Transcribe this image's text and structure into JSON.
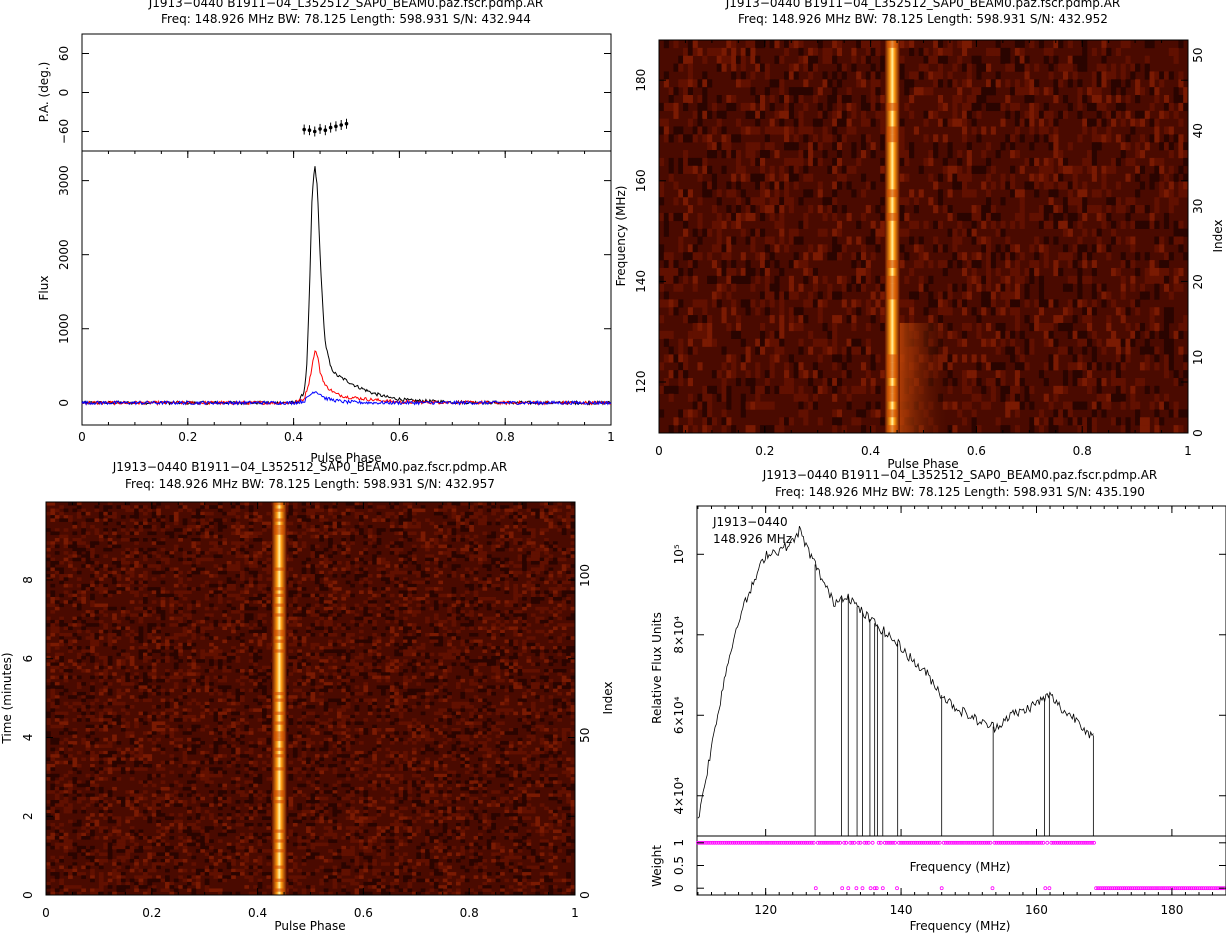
{
  "chart_data": [
    {
      "type": "line",
      "title": "J1913−0440  B1911−04_L352512_SAP0_BEAM0.paz.fscr.pdmp.AR",
      "subtitle": "Freq: 148.926 MHz BW: 78.125 Length: 598.931 S/N: 432.944",
      "xlabel": "Pulse Phase",
      "xlim": [
        0,
        1
      ],
      "xticks": [
        "0",
        "0.2",
        "0.4",
        "0.6",
        "0.8",
        "1"
      ],
      "pa_panel": {
        "ylabel": "P.A. (deg.)",
        "ylim": [
          -90,
          90
        ],
        "yticks": [
          "60",
          "0",
          "−60"
        ],
        "x": [
          0.42,
          0.43,
          0.44,
          0.45,
          0.46,
          0.47,
          0.48,
          0.49,
          0.5
        ],
        "y": [
          -57,
          -58,
          -60,
          -56,
          -58,
          -54,
          -52,
          -50,
          -48
        ]
      },
      "flux_panel": {
        "ylabel": "Flux",
        "ylim": [
          -300,
          3400
        ],
        "yticks": [
          "0",
          "1000",
          "2000",
          "3000"
        ],
        "series": [
          {
            "color": "#000000",
            "x": [
              0,
              0.1,
              0.2,
              0.3,
              0.4,
              0.41,
              0.42,
              0.425,
              0.43,
              0.435,
              0.44,
              0.445,
              0.45,
              0.455,
              0.46,
              0.47,
              0.48,
              0.5,
              0.52,
              0.55,
              0.58,
              0.62,
              0.7,
              0.8,
              0.9,
              1.0
            ],
            "y": [
              0,
              0,
              0,
              0,
              0,
              20,
              150,
              500,
              1500,
              2800,
              3200,
              2900,
              2000,
              1300,
              800,
              480,
              380,
              300,
              220,
              130,
              70,
              30,
              10,
              0,
              0,
              0
            ]
          },
          {
            "color": "#ff0000",
            "x": [
              0,
              0.4,
              0.42,
              0.43,
              0.44,
              0.445,
              0.45,
              0.46,
              0.48,
              0.5,
              0.55,
              0.6,
              0.8,
              1.0
            ],
            "y": [
              0,
              0,
              50,
              300,
              700,
              650,
              420,
              230,
              120,
              80,
              40,
              10,
              0,
              0
            ]
          },
          {
            "color": "#0000ff",
            "x": [
              0,
              0.4,
              0.42,
              0.43,
              0.44,
              0.45,
              0.46,
              0.48,
              0.5,
              0.55,
              0.6,
              1.0
            ],
            "y": [
              0,
              0,
              20,
              100,
              160,
              120,
              60,
              30,
              10,
              0,
              0,
              0
            ]
          }
        ]
      }
    },
    {
      "type": "heatmap",
      "title": "J1913−0440  B1911−04_L352512_SAP0_BEAM0.paz.fscr.pdmp.AR",
      "subtitle": "Freq: 148.926 MHz BW: 78.125 Length: 598.931 S/N: 432.952",
      "xlabel": "Pulse Phase",
      "ylabel": "Frequency (MHz)",
      "ylabel_right": "Index",
      "xlim": [
        0,
        1
      ],
      "ylim": [
        109.86,
        187.99
      ],
      "xticks": [
        "0",
        "0.2",
        "0.4",
        "0.6",
        "0.8",
        "1"
      ],
      "yticks": [
        "120",
        "140",
        "160",
        "180"
      ],
      "yticks_right": [
        "0",
        "10",
        "20",
        "30",
        "40",
        "50"
      ],
      "pulse_phase": 0.44
    },
    {
      "type": "heatmap",
      "title": "J1913−0440  B1911−04_L352512_SAP0_BEAM0.paz.fscr.pdmp.AR",
      "subtitle": "Freq: 148.926 MHz BW: 78.125 Length: 598.931 S/N: 432.957",
      "xlabel": "Pulse Phase",
      "ylabel": "Time (minutes)",
      "ylabel_right": "Index",
      "xlim": [
        0,
        1
      ],
      "ylim": [
        0,
        9.98
      ],
      "xticks": [
        "0",
        "0.2",
        "0.4",
        "0.6",
        "0.8",
        "1"
      ],
      "yticks": [
        "0",
        "2",
        "4",
        "6",
        "8"
      ],
      "yticks_right": [
        "0",
        "50",
        "100"
      ],
      "pulse_phase": 0.44
    },
    {
      "type": "line",
      "title": "J1913−0440  B1911−04_L352512_SAP0_BEAM0.paz.fscr.pdmp.AR",
      "subtitle": "Freq: 148.926 MHz BW: 78.125 Length: 598.931 S/N: 435.190",
      "annotation": [
        "J1913−0440",
        "148.926 MHz"
      ],
      "xlabel": "Frequency (MHz)",
      "xlim": [
        109.86,
        187.99
      ],
      "xticks": [
        "120",
        "140",
        "160",
        "180"
      ],
      "spectrum_panel": {
        "ylabel": "Relative Flux Units",
        "ylim": [
          30000,
          112000
        ],
        "yticks": [
          "4×10⁴",
          "6×10⁴",
          "8×10⁴",
          "10⁵"
        ],
        "ytick_values": [
          40000,
          60000,
          80000,
          100000
        ],
        "x": [
          110,
          112,
          114,
          116,
          118,
          120,
          122,
          124,
          125,
          126,
          128,
          130,
          132,
          134,
          136,
          138,
          140,
          142,
          144,
          146,
          148,
          150,
          152,
          154,
          156,
          158,
          160,
          162,
          164,
          166,
          168
        ],
        "y": [
          34000,
          52000,
          70000,
          84000,
          92000,
          100000,
          101000,
          103000,
          106000,
          102000,
          95000,
          88000,
          90000,
          86000,
          83000,
          80000,
          77000,
          73000,
          70000,
          65000,
          62000,
          60000,
          58000,
          57000,
          60000,
          61000,
          63000,
          65000,
          61000,
          59000,
          55000
        ],
        "dropouts": [
          127.3,
          131.2,
          132.2,
          133.5,
          134.3,
          135.4,
          136.1,
          136.5,
          137.3,
          139.5,
          146.0,
          153.6,
          161.2,
          161.9
        ]
      },
      "weight_panel": {
        "ylabel": "Weight",
        "ylim": [
          -0.15,
          1.15
        ],
        "yticks": [
          "0",
          "0.5",
          "1"
        ],
        "xlabel": "Frequency (MHz)",
        "zero_weight_freqs": [
          127.3,
          131.2,
          132.2,
          133.5,
          134.3,
          135.4,
          136.1,
          136.5,
          137.3,
          139.5,
          146.0,
          153.6,
          161.2,
          161.9
        ],
        "zero_weight_range": [
          168.8,
          187.99
        ],
        "marker_color": "#ff00ff"
      }
    }
  ]
}
